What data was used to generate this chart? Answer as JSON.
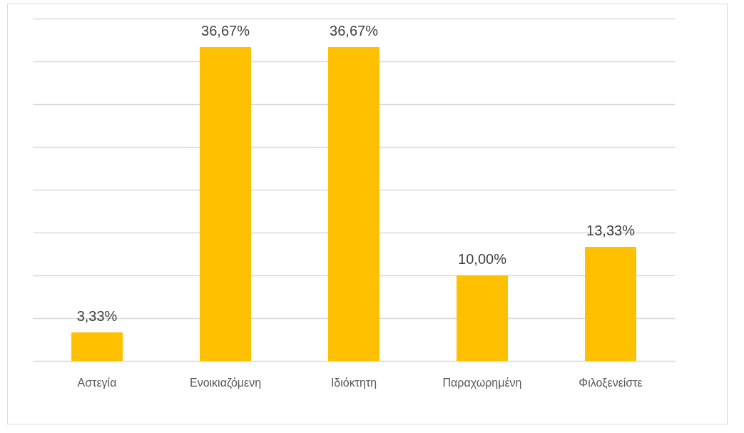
{
  "chart_data": {
    "type": "bar",
    "categories": [
      "Αστεγία",
      "Ενοικιαζόμενη",
      "Ιδιόκτητη",
      "Παραχωρημένη",
      "Φιλοξενείστε"
    ],
    "values": [
      3.33,
      36.67,
      36.67,
      10.0,
      13.33
    ],
    "value_labels": [
      "3,33%",
      "36,67%",
      "36,67%",
      "10,00%",
      "13,33%"
    ],
    "color": "#ffc000",
    "ylim": [
      0,
      40
    ],
    "yticks": [
      {
        "value": 0,
        "label": null
      },
      {
        "value": 5,
        "label": null
      },
      {
        "value": 10,
        "label": null
      },
      {
        "value": 15,
        "label": null
      },
      {
        "value": 20,
        "label": null
      },
      {
        "value": 25,
        "label": null
      },
      {
        "value": 30,
        "label": null
      },
      {
        "value": 35,
        "label": null
      },
      {
        "value": 40,
        "label": null
      }
    ],
    "grid": "y",
    "tick_labels": "x"
  }
}
